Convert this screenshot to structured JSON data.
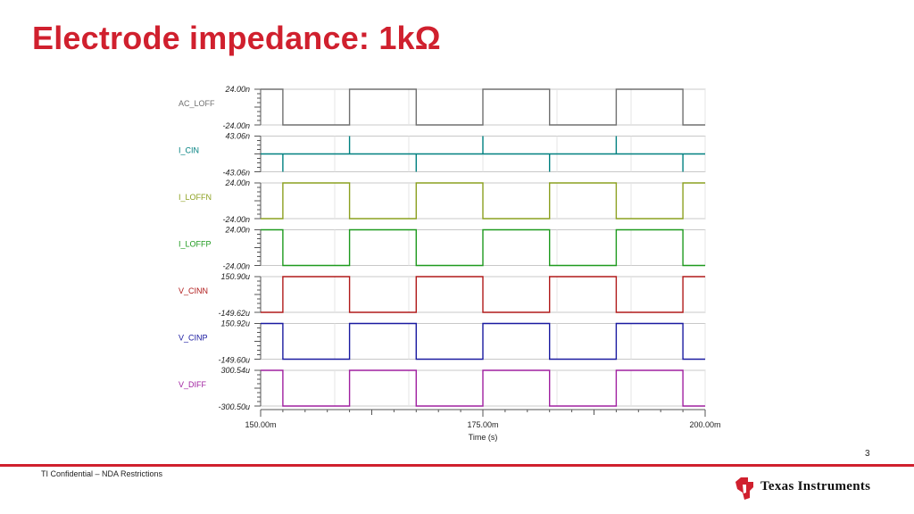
{
  "slide": {
    "title": "Electrode impedance: 1kΩ",
    "page_number": "3",
    "footer": "TI Confidential – NDA Restrictions",
    "logo_text": "Texas Instruments",
    "accent_color": "#d0202e"
  },
  "chart_data": {
    "type": "line",
    "xlabel": "Time (s)",
    "x_ticks": [
      "150.00m",
      "175.00m",
      "200.00m"
    ],
    "x_tick_values": [
      150,
      175,
      200
    ],
    "xlim": [
      150,
      200
    ],
    "x_unit": "ms",
    "edges_ms": [
      152.5,
      160,
      167.5,
      175,
      182.5,
      190,
      197.5
    ],
    "series": [
      {
        "name": "AC_LOFF",
        "color": "#707070",
        "top_label": "24.00n",
        "bottom_label": "-24.00n",
        "ylim": [
          -24.0,
          24.0
        ],
        "unit": "nA",
        "shape": "square",
        "start_level": 24.0,
        "low": -24.0,
        "high": 24.0
      },
      {
        "name": "I_CIN",
        "color": "#008080",
        "top_label": "43.06n",
        "bottom_label": "-43.06n",
        "ylim": [
          -43.06,
          43.06
        ],
        "unit": "nA",
        "shape": "spikes",
        "baseline": 0,
        "rise_peak": 43.06,
        "fall_peak": -43.06
      },
      {
        "name": "I_LOFFN",
        "color": "#8ca020",
        "top_label": "24.00n",
        "bottom_label": "-24.00n",
        "ylim": [
          -24.0,
          24.0
        ],
        "unit": "nA",
        "shape": "square",
        "start_level": -24.0,
        "low": -24.0,
        "high": 24.0
      },
      {
        "name": "I_LOFFP",
        "color": "#1e9a1e",
        "top_label": "24.00n",
        "bottom_label": "-24.00n",
        "ylim": [
          -24.0,
          24.0
        ],
        "unit": "nA",
        "shape": "square",
        "start_level": 24.0,
        "low": -24.0,
        "high": 24.0
      },
      {
        "name": "V_CINN",
        "color": "#b01a1a",
        "top_label": "150.90u",
        "bottom_label": "-149.62u",
        "ylim": [
          -149.62,
          150.9
        ],
        "unit": "uV",
        "shape": "square",
        "start_level": -149.62,
        "low": -149.62,
        "high": 150.9
      },
      {
        "name": "V_CINP",
        "color": "#1a1aa0",
        "top_label": "150.92u",
        "bottom_label": "-149.60u",
        "ylim": [
          -149.6,
          150.92
        ],
        "unit": "uV",
        "shape": "square",
        "start_level": 150.92,
        "low": -149.6,
        "high": 150.92
      },
      {
        "name": "V_DIFF",
        "color": "#a020a0",
        "top_label": "300.54u",
        "bottom_label": "-300.50u",
        "ylim": [
          -300.5,
          300.54
        ],
        "unit": "uV",
        "shape": "square",
        "start_level": 300.54,
        "low": -300.5,
        "high": 300.54
      }
    ]
  }
}
